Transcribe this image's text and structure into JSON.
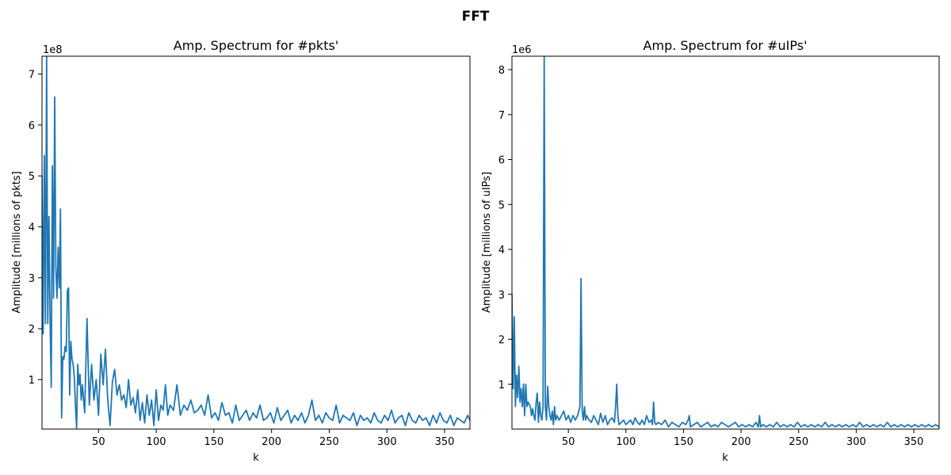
{
  "figure": {
    "title": "FFT"
  },
  "chart_data": [
    {
      "type": "line",
      "title": "Amp. Spectrum for #pkts'",
      "xlabel": "k",
      "ylabel": "Amplitude [millions of pkts]",
      "offset_text": "1e8",
      "xlim": [
        1,
        372
      ],
      "ylim": [
        0.03,
        7.35
      ],
      "xticks": [
        50,
        100,
        150,
        200,
        250,
        300,
        350
      ],
      "xtick_labels": [
        "50",
        "100",
        "150",
        "200",
        "250",
        "300",
        "350"
      ],
      "yticks": [
        1,
        2,
        3,
        4,
        5,
        6,
        7
      ],
      "ytick_labels": [
        "1",
        "2",
        "3",
        "4",
        "5",
        "6",
        "7"
      ],
      "grid": false,
      "color": "#1f77b4",
      "series": [
        {
          "x": [
            1,
            2,
            3,
            4,
            5,
            6,
            7,
            8,
            9,
            10,
            11,
            12,
            13,
            14,
            15,
            16,
            17,
            18,
            19,
            20,
            21,
            22,
            23,
            24,
            25,
            26,
            27,
            28,
            29,
            30,
            31,
            32,
            33,
            34,
            35,
            36,
            38,
            40,
            42,
            44,
            46,
            48,
            50,
            52,
            54,
            56,
            58,
            60,
            62,
            64,
            66,
            68,
            70,
            72,
            74,
            76,
            78,
            80,
            82,
            84,
            86,
            88,
            90,
            92,
            94,
            96,
            98,
            100,
            102,
            104,
            106,
            108,
            110,
            112,
            115,
            118,
            121,
            124,
            127,
            130,
            133,
            136,
            139,
            142,
            145,
            148,
            151,
            154,
            157,
            160,
            163,
            166,
            169,
            172,
            175,
            178,
            181,
            184,
            187,
            190,
            193,
            196,
            199,
            202,
            205,
            208,
            211,
            214,
            217,
            220,
            223,
            226,
            229,
            232,
            235,
            238,
            241,
            244,
            247,
            250,
            253,
            256,
            259,
            262,
            265,
            268,
            271,
            274,
            277,
            280,
            283,
            286,
            289,
            292,
            295,
            298,
            301,
            304,
            307,
            310,
            313,
            316,
            319,
            322,
            325,
            328,
            331,
            334,
            337,
            340,
            343,
            346,
            349,
            352,
            355,
            358,
            361,
            364,
            367,
            370,
            372
          ],
          "y": [
            5.0,
            1.9,
            5.4,
            2.1,
            7.35,
            2.1,
            4.2,
            2.2,
            0.85,
            5.2,
            2.6,
            6.55,
            3.2,
            2.6,
            3.6,
            2.8,
            4.35,
            0.25,
            1.45,
            1.4,
            1.65,
            1.55,
            2.75,
            2.8,
            0.7,
            1.75,
            1.4,
            1.3,
            1.05,
            0.5,
            0.05,
            1.3,
            0.9,
            1.1,
            0.6,
            0.9,
            0.35,
            2.2,
            0.5,
            1.3,
            0.6,
            1.0,
            0.3,
            1.5,
            0.9,
            1.6,
            0.6,
            0.1,
            0.95,
            1.2,
            0.7,
            0.9,
            0.6,
            0.7,
            0.45,
            1.0,
            0.5,
            0.65,
            0.35,
            0.8,
            0.2,
            0.55,
            0.15,
            0.7,
            0.3,
            0.6,
            0.1,
            0.8,
            0.2,
            0.5,
            0.4,
            0.9,
            0.3,
            0.5,
            0.4,
            0.9,
            0.3,
            0.5,
            0.4,
            0.6,
            0.35,
            0.4,
            0.5,
            0.3,
            0.7,
            0.25,
            0.35,
            0.2,
            0.55,
            0.3,
            0.35,
            0.15,
            0.5,
            0.2,
            0.3,
            0.4,
            0.2,
            0.35,
            0.25,
            0.5,
            0.2,
            0.25,
            0.35,
            0.15,
            0.45,
            0.2,
            0.3,
            0.4,
            0.15,
            0.3,
            0.2,
            0.35,
            0.15,
            0.3,
            0.6,
            0.2,
            0.3,
            0.15,
            0.35,
            0.25,
            0.2,
            0.5,
            0.15,
            0.3,
            0.25,
            0.2,
            0.35,
            0.1,
            0.3,
            0.2,
            0.25,
            0.15,
            0.35,
            0.2,
            0.15,
            0.3,
            0.2,
            0.4,
            0.15,
            0.25,
            0.3,
            0.1,
            0.35,
            0.2,
            0.15,
            0.3,
            0.2,
            0.25,
            0.1,
            0.3,
            0.15,
            0.35,
            0.2,
            0.15,
            0.3,
            0.1,
            0.25,
            0.2,
            0.15,
            0.3,
            0.2
          ]
        }
      ]
    },
    {
      "type": "line",
      "title": "Amp. Spectrum for #uIPs'",
      "xlabel": "k",
      "ylabel": "Amplitude [millions of uIPs]",
      "offset_text": "1e6",
      "xlim": [
        1,
        372
      ],
      "ylim": [
        0.0,
        8.3
      ],
      "xticks": [
        50,
        100,
        150,
        200,
        250,
        300,
        350
      ],
      "xtick_labels": [
        "50",
        "100",
        "150",
        "200",
        "250",
        "300",
        "350"
      ],
      "yticks": [
        1,
        2,
        3,
        4,
        5,
        6,
        7,
        8
      ],
      "ytick_labels": [
        "1",
        "2",
        "3",
        "4",
        "5",
        "6",
        "7",
        "8"
      ],
      "grid": false,
      "color": "#1f77b4",
      "series": [
        {
          "x": [
            1,
            2,
            3,
            4,
            5,
            6,
            7,
            8,
            9,
            10,
            11,
            12,
            13,
            14,
            15,
            16,
            17,
            18,
            19,
            20,
            21,
            22,
            23,
            24,
            25,
            26,
            27,
            28,
            29,
            30,
            31,
            32,
            33,
            34,
            35,
            36,
            37,
            38,
            39,
            40,
            42,
            44,
            46,
            48,
            50,
            52,
            54,
            56,
            58,
            60,
            61,
            62,
            63,
            64,
            65,
            66,
            68,
            70,
            72,
            74,
            76,
            78,
            80,
            82,
            84,
            86,
            88,
            90,
            91,
            92,
            93,
            94,
            96,
            98,
            100,
            102,
            104,
            106,
            108,
            110,
            112,
            114,
            116,
            118,
            120,
            122,
            123,
            124,
            125,
            126,
            128,
            131,
            134,
            137,
            140,
            143,
            146,
            149,
            152,
            154,
            155,
            156,
            159,
            162,
            165,
            168,
            171,
            174,
            177,
            180,
            183,
            186,
            189,
            192,
            195,
            198,
            201,
            204,
            207,
            210,
            213,
            215,
            216,
            217,
            219,
            222,
            225,
            228,
            231,
            234,
            237,
            240,
            243,
            246,
            249,
            252,
            255,
            258,
            261,
            264,
            267,
            270,
            273,
            276,
            279,
            282,
            285,
            288,
            291,
            294,
            297,
            300,
            303,
            306,
            309,
            312,
            315,
            318,
            321,
            324,
            327,
            330,
            333,
            336,
            339,
            342,
            345,
            348,
            351,
            354,
            357,
            360,
            363,
            366,
            369,
            372
          ],
          "y": [
            3.0,
            0.9,
            2.5,
            0.5,
            1.2,
            0.7,
            1.4,
            0.6,
            0.9,
            0.5,
            1.0,
            0.3,
            1.0,
            0.5,
            0.6,
            0.55,
            0.5,
            0.3,
            0.45,
            0.3,
            0.2,
            0.6,
            0.8,
            0.15,
            0.6,
            0.3,
            0.2,
            0.5,
            8.3,
            0.5,
            0.2,
            0.95,
            0.5,
            0.3,
            0.2,
            0.4,
            0.1,
            0.5,
            0.2,
            0.3,
            0.2,
            0.3,
            0.4,
            0.2,
            0.3,
            0.15,
            0.3,
            0.2,
            0.3,
            0.5,
            3.35,
            0.4,
            0.2,
            0.5,
            0.2,
            0.3,
            0.2,
            0.15,
            0.3,
            0.2,
            0.1,
            0.35,
            0.15,
            0.3,
            0.1,
            0.2,
            0.25,
            0.15,
            0.5,
            1.0,
            0.3,
            0.1,
            0.15,
            0.2,
            0.1,
            0.15,
            0.2,
            0.1,
            0.25,
            0.15,
            0.1,
            0.2,
            0.1,
            0.3,
            0.15,
            0.2,
            0.1,
            0.6,
            0.15,
            0.1,
            0.15,
            0.1,
            0.2,
            0.05,
            0.15,
            0.1,
            0.05,
            0.15,
            0.1,
            0.2,
            0.3,
            0.05,
            0.1,
            0.15,
            0.05,
            0.1,
            0.15,
            0.05,
            0.1,
            0.05,
            0.15,
            0.1,
            0.05,
            0.1,
            0.15,
            0.05,
            0.1,
            0.05,
            0.1,
            0.05,
            0.15,
            0.05,
            0.3,
            0.05,
            0.1,
            0.05,
            0.1,
            0.05,
            0.15,
            0.05,
            0.1,
            0.05,
            0.1,
            0.05,
            0.15,
            0.05,
            0.1,
            0.05,
            0.1,
            0.05,
            0.1,
            0.05,
            0.15,
            0.05,
            0.1,
            0.05,
            0.1,
            0.05,
            0.1,
            0.05,
            0.1,
            0.05,
            0.15,
            0.05,
            0.1,
            0.05,
            0.1,
            0.05,
            0.1,
            0.05,
            0.15,
            0.05,
            0.1,
            0.05,
            0.1,
            0.05,
            0.1,
            0.05,
            0.1,
            0.05,
            0.1,
            0.05,
            0.1,
            0.05,
            0.1,
            0.05
          ]
        }
      ]
    }
  ]
}
